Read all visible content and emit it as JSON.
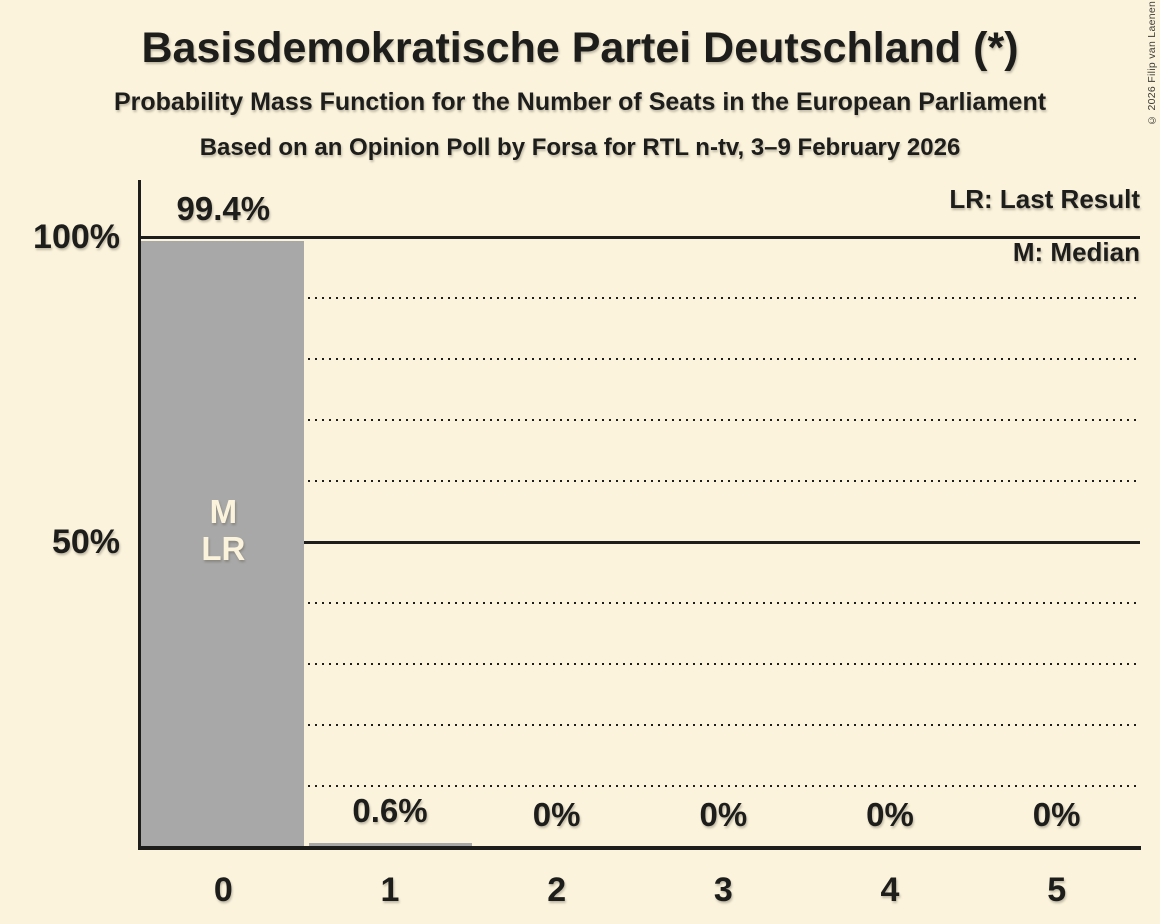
{
  "title": "Basisdemokratische Partei Deutschland (*)",
  "subtitle": "Probability Mass Function for the Number of Seats in the European Parliament",
  "sub_subtitle": "Based on an Opinion Poll by Forsa for RTL n-tv, 3–9 February 2026",
  "copyright": "© 2026 Filip van Laenen",
  "legend": {
    "last_result": "LR: Last Result",
    "median": "M: Median"
  },
  "colors": {
    "background": "#fbf3dc",
    "bar": "#a8a8a8",
    "text": "#1d1d1b",
    "gridline": "#1d1d1b",
    "bar_annotation": "#fbf3dc"
  },
  "chart_data": {
    "type": "bar",
    "categories": [
      "0",
      "1",
      "2",
      "3",
      "4",
      "5"
    ],
    "values": [
      99.4,
      0.6,
      0,
      0,
      0,
      0
    ],
    "value_labels": [
      "99.4%",
      "0.6%",
      "0%",
      "0%",
      "0%",
      "0%"
    ],
    "bar_annotations": {
      "0": [
        "M",
        "LR"
      ]
    },
    "yticks": [
      {
        "label": "100%",
        "value": 100
      },
      {
        "label": "50%",
        "value": 50
      }
    ],
    "ylim": [
      0,
      100
    ],
    "gridlines_dotted": [
      10,
      20,
      30,
      40,
      60,
      70,
      80,
      90
    ],
    "gridlines_solid": [
      50,
      100
    ],
    "xlabel": "",
    "ylabel": "",
    "legend_position": "top-right",
    "grid": true
  }
}
